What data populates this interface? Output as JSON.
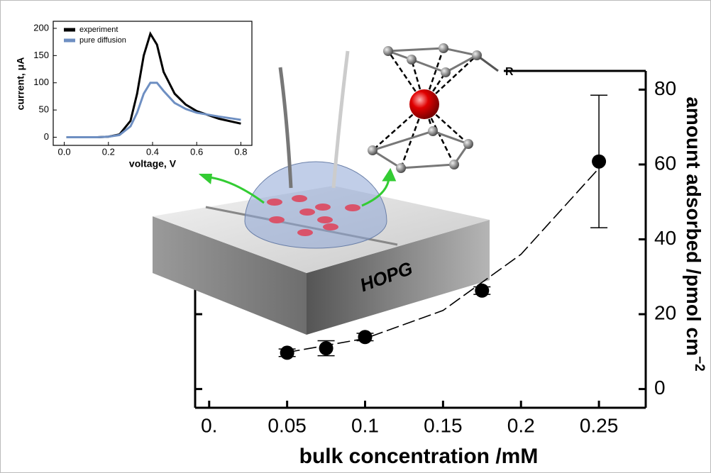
{
  "chart_data": [
    {
      "type": "scatter",
      "x_label": "bulk concentration /mM",
      "y_label": "amount adsorbed /pmol cm",
      "y_label_superscript": "−2",
      "x": [
        0.05,
        0.075,
        0.1,
        0.175,
        0.25
      ],
      "values": [
        9.7,
        10.9,
        13.9,
        26.3,
        60.8
      ],
      "errors": [
        1,
        2,
        1,
        1,
        17.7
      ],
      "color": "#000000",
      "fit": {
        "x": [
          0.05,
          0.1,
          0.15,
          0.2,
          0.25
        ],
        "values": [
          9.8,
          13.5,
          21,
          36,
          59
        ]
      },
      "xlim": [
        -0.009,
        0.28
      ],
      "xticks": [
        {
          "value": 0,
          "label": "0."
        },
        0.05,
        0.1,
        0.15,
        0.2,
        0.25
      ],
      "ylim": [
        -5,
        85
      ],
      "yticks": [
        0,
        20,
        40,
        60,
        80
      ],
      "y_axis_side": "right"
    },
    {
      "type": "line",
      "x_label": "voltage, V",
      "y_label": "current, μA",
      "x": [
        0.01,
        0.05,
        0.1,
        0.15,
        0.2,
        0.25,
        0.3,
        0.33,
        0.36,
        0.39,
        0.42,
        0.45,
        0.5,
        0.55,
        0.6,
        0.7,
        0.8
      ],
      "series": [
        {
          "name": "experiment",
          "color": "#000000",
          "values": [
            0,
            0,
            0,
            0,
            1,
            5,
            30,
            80,
            150,
            190,
            170,
            120,
            80,
            60,
            48,
            34,
            25
          ]
        },
        {
          "name": "pure diffusion",
          "color": "#6e8fc2",
          "values": [
            0,
            0,
            0,
            0,
            1,
            4,
            20,
            45,
            80,
            100,
            100,
            85,
            63,
            52,
            45,
            38,
            32
          ]
        }
      ],
      "xlim": [
        -0.05,
        0.85
      ],
      "xticks": [
        {
          "value": 0,
          "label": "0.0"
        },
        0.2,
        0.4,
        0.6,
        0.8
      ],
      "ylim": [
        -15,
        213
      ],
      "yticks": [
        0,
        50,
        100,
        150,
        200
      ],
      "legend": "upper left"
    }
  ],
  "illustration": {
    "substrate_label": "HOPG",
    "substituent_label": "R"
  }
}
